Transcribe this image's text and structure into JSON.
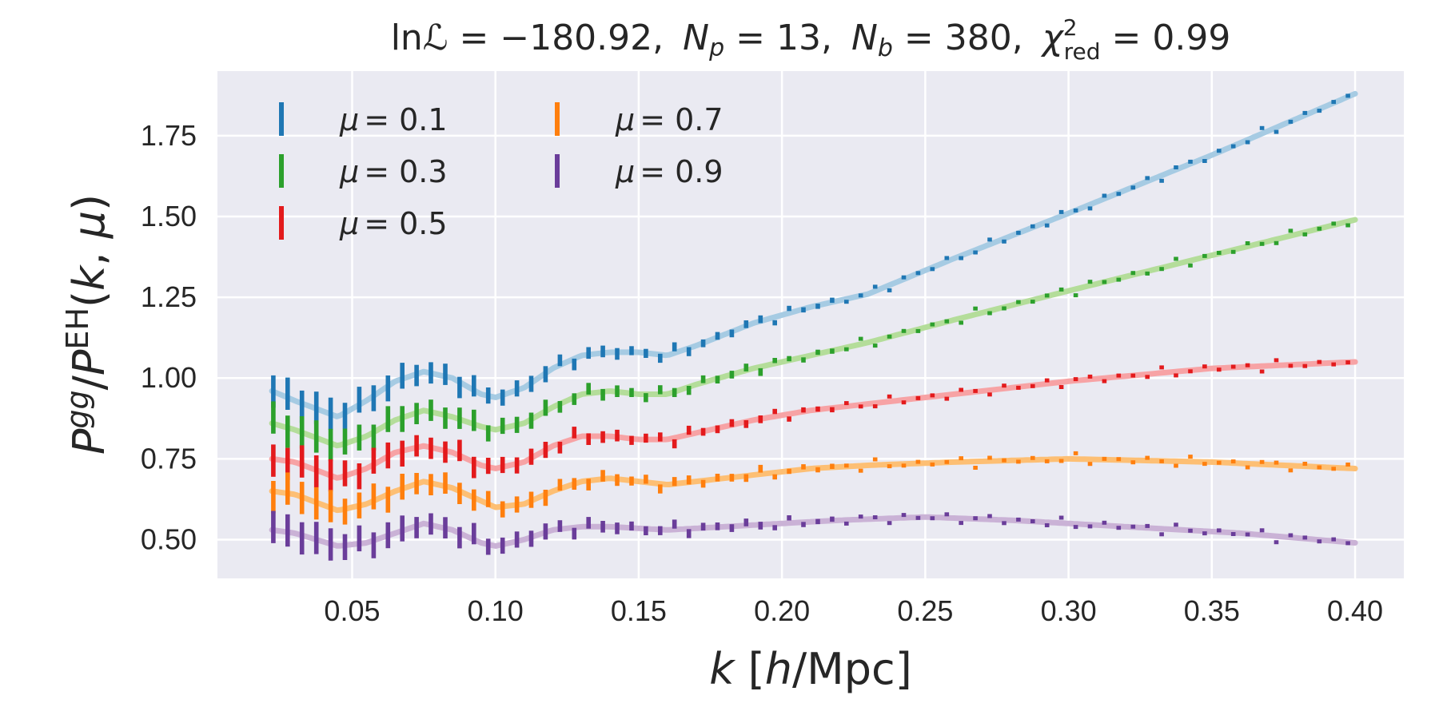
{
  "chart_data": {
    "type": "line",
    "title": "lnℒ = −180.92, Nₚ = 13, N_b = 380, χ²_red = 0.99",
    "title_parts": {
      "lnL": "lnℒ = −180.92,",
      "Np": "N",
      "Np_sub": "p",
      "Np_val": " = 13,",
      "Nb": "N",
      "Nb_sub": "b",
      "Nb_val": " = 380,",
      "chi": "χ",
      "chi_sup": "2",
      "chi_sub": "red",
      "chi_val": " = 0.99"
    },
    "xlabel": "k [h/Mpc]",
    "xlabel_parts": {
      "k": "k",
      "bracket": " [",
      "h": "h",
      "unit": "/Mpc]"
    },
    "ylabel": "P^gg/P^EH(k, μ)",
    "ylabel_parts": {
      "P1": "P",
      "gg": "gg",
      "slash": "/",
      "P2": "P",
      "EH": "EH",
      "args": "(",
      "k": "k",
      "comma": ", ",
      "mu": "μ",
      "close": ")"
    },
    "xlim": [
      0.003,
      0.417
    ],
    "ylim": [
      0.38,
      1.95
    ],
    "x_ticks": [
      0.05,
      0.1,
      0.15,
      0.2,
      0.25,
      0.3,
      0.35,
      0.4
    ],
    "x_tick_labels": [
      "0.05",
      "0.10",
      "0.15",
      "0.20",
      "0.25",
      "0.30",
      "0.35",
      "0.40"
    ],
    "y_ticks": [
      0.5,
      0.75,
      1.0,
      1.25,
      1.5,
      1.75
    ],
    "y_tick_labels": [
      "0.50",
      "0.75",
      "1.00",
      "1.25",
      "1.50",
      "1.75"
    ],
    "grid": true,
    "legend_placement": "top-left",
    "x_range": [
      0.0225,
      0.3975
    ],
    "n_points": 76,
    "series": [
      {
        "name": "μ = 0.1",
        "color": "#1f77b4",
        "fit_color": "#a6cbe3",
        "model": [
          [
            0.022,
            0.96
          ],
          [
            0.03,
            0.93
          ],
          [
            0.045,
            0.88
          ],
          [
            0.055,
            0.93
          ],
          [
            0.065,
            0.99
          ],
          [
            0.075,
            1.02
          ],
          [
            0.085,
            1.0
          ],
          [
            0.095,
            0.95
          ],
          [
            0.1,
            0.94
          ],
          [
            0.11,
            0.97
          ],
          [
            0.12,
            1.03
          ],
          [
            0.13,
            1.07
          ],
          [
            0.14,
            1.08
          ],
          [
            0.15,
            1.08
          ],
          [
            0.16,
            1.07
          ],
          [
            0.17,
            1.1
          ],
          [
            0.19,
            1.17
          ],
          [
            0.21,
            1.22
          ],
          [
            0.23,
            1.26
          ],
          [
            0.26,
            1.37
          ],
          [
            0.3,
            1.51
          ],
          [
            0.35,
            1.69
          ],
          [
            0.4,
            1.88
          ]
        ],
        "error": [
          0.05,
          0.04,
          0.033,
          0.025,
          0.018,
          0.014,
          0.012,
          0.008,
          0.006
        ]
      },
      {
        "name": "μ = 0.3",
        "color": "#2ca02c",
        "fit_color": "#b4dd9a",
        "model": [
          [
            0.022,
            0.86
          ],
          [
            0.03,
            0.84
          ],
          [
            0.045,
            0.79
          ],
          [
            0.055,
            0.82
          ],
          [
            0.065,
            0.87
          ],
          [
            0.075,
            0.9
          ],
          [
            0.085,
            0.88
          ],
          [
            0.095,
            0.85
          ],
          [
            0.1,
            0.84
          ],
          [
            0.11,
            0.86
          ],
          [
            0.12,
            0.91
          ],
          [
            0.13,
            0.95
          ],
          [
            0.14,
            0.96
          ],
          [
            0.15,
            0.95
          ],
          [
            0.16,
            0.95
          ],
          [
            0.17,
            0.98
          ],
          [
            0.19,
            1.03
          ],
          [
            0.21,
            1.07
          ],
          [
            0.23,
            1.11
          ],
          [
            0.26,
            1.18
          ],
          [
            0.3,
            1.27
          ],
          [
            0.35,
            1.38
          ],
          [
            0.4,
            1.49
          ]
        ],
        "error": [
          0.05,
          0.04,
          0.033,
          0.025,
          0.018,
          0.014,
          0.012,
          0.008,
          0.006
        ]
      },
      {
        "name": "μ = 0.5",
        "color": "#e31a1c",
        "fit_color": "#f7a3a5",
        "model": [
          [
            0.022,
            0.75
          ],
          [
            0.03,
            0.74
          ],
          [
            0.045,
            0.69
          ],
          [
            0.055,
            0.72
          ],
          [
            0.065,
            0.77
          ],
          [
            0.075,
            0.79
          ],
          [
            0.085,
            0.77
          ],
          [
            0.095,
            0.73
          ],
          [
            0.1,
            0.72
          ],
          [
            0.11,
            0.74
          ],
          [
            0.12,
            0.79
          ],
          [
            0.13,
            0.82
          ],
          [
            0.14,
            0.82
          ],
          [
            0.15,
            0.81
          ],
          [
            0.16,
            0.81
          ],
          [
            0.17,
            0.83
          ],
          [
            0.19,
            0.87
          ],
          [
            0.21,
            0.9
          ],
          [
            0.23,
            0.92
          ],
          [
            0.26,
            0.95
          ],
          [
            0.3,
            0.99
          ],
          [
            0.35,
            1.03
          ],
          [
            0.4,
            1.05
          ]
        ],
        "error": [
          0.05,
          0.04,
          0.033,
          0.025,
          0.018,
          0.014,
          0.012,
          0.008,
          0.006
        ]
      },
      {
        "name": "μ = 0.7",
        "color": "#ff7f0e",
        "fit_color": "#fdbf74",
        "model": [
          [
            0.022,
            0.65
          ],
          [
            0.03,
            0.64
          ],
          [
            0.045,
            0.59
          ],
          [
            0.055,
            0.61
          ],
          [
            0.065,
            0.65
          ],
          [
            0.075,
            0.68
          ],
          [
            0.085,
            0.66
          ],
          [
            0.095,
            0.62
          ],
          [
            0.1,
            0.6
          ],
          [
            0.11,
            0.61
          ],
          [
            0.12,
            0.65
          ],
          [
            0.13,
            0.68
          ],
          [
            0.14,
            0.69
          ],
          [
            0.15,
            0.68
          ],
          [
            0.16,
            0.67
          ],
          [
            0.17,
            0.68
          ],
          [
            0.19,
            0.7
          ],
          [
            0.21,
            0.72
          ],
          [
            0.23,
            0.73
          ],
          [
            0.26,
            0.74
          ],
          [
            0.3,
            0.75
          ],
          [
            0.35,
            0.74
          ],
          [
            0.4,
            0.72
          ]
        ],
        "error": [
          0.05,
          0.04,
          0.033,
          0.025,
          0.018,
          0.014,
          0.012,
          0.008,
          0.006
        ]
      },
      {
        "name": "μ = 0.9",
        "color": "#6a3d9a",
        "fit_color": "#cab2d6",
        "model": [
          [
            0.022,
            0.53
          ],
          [
            0.03,
            0.52
          ],
          [
            0.045,
            0.48
          ],
          [
            0.055,
            0.49
          ],
          [
            0.065,
            0.52
          ],
          [
            0.075,
            0.55
          ],
          [
            0.085,
            0.53
          ],
          [
            0.095,
            0.49
          ],
          [
            0.1,
            0.48
          ],
          [
            0.11,
            0.5
          ],
          [
            0.12,
            0.53
          ],
          [
            0.13,
            0.54
          ],
          [
            0.14,
            0.54
          ],
          [
            0.16,
            0.53
          ],
          [
            0.18,
            0.54
          ],
          [
            0.2,
            0.55
          ],
          [
            0.22,
            0.56
          ],
          [
            0.25,
            0.57
          ],
          [
            0.28,
            0.56
          ],
          [
            0.32,
            0.54
          ],
          [
            0.36,
            0.52
          ],
          [
            0.4,
            0.49
          ]
        ],
        "error": [
          0.05,
          0.04,
          0.033,
          0.025,
          0.018,
          0.014,
          0.012,
          0.008,
          0.006
        ]
      }
    ],
    "legend": {
      "columns": [
        [
          "μ = 0.1",
          "μ = 0.3",
          "μ = 0.5"
        ],
        [
          "μ = 0.7",
          "μ = 0.9"
        ]
      ],
      "mu_symbol": "μ",
      "values": [
        "= 0.1",
        "= 0.3",
        "= 0.5",
        "= 0.7",
        "= 0.9"
      ]
    },
    "style": {
      "plot_background": "#eaeaf2",
      "grid_color": "#ffffff",
      "text_color": "#262626"
    }
  }
}
